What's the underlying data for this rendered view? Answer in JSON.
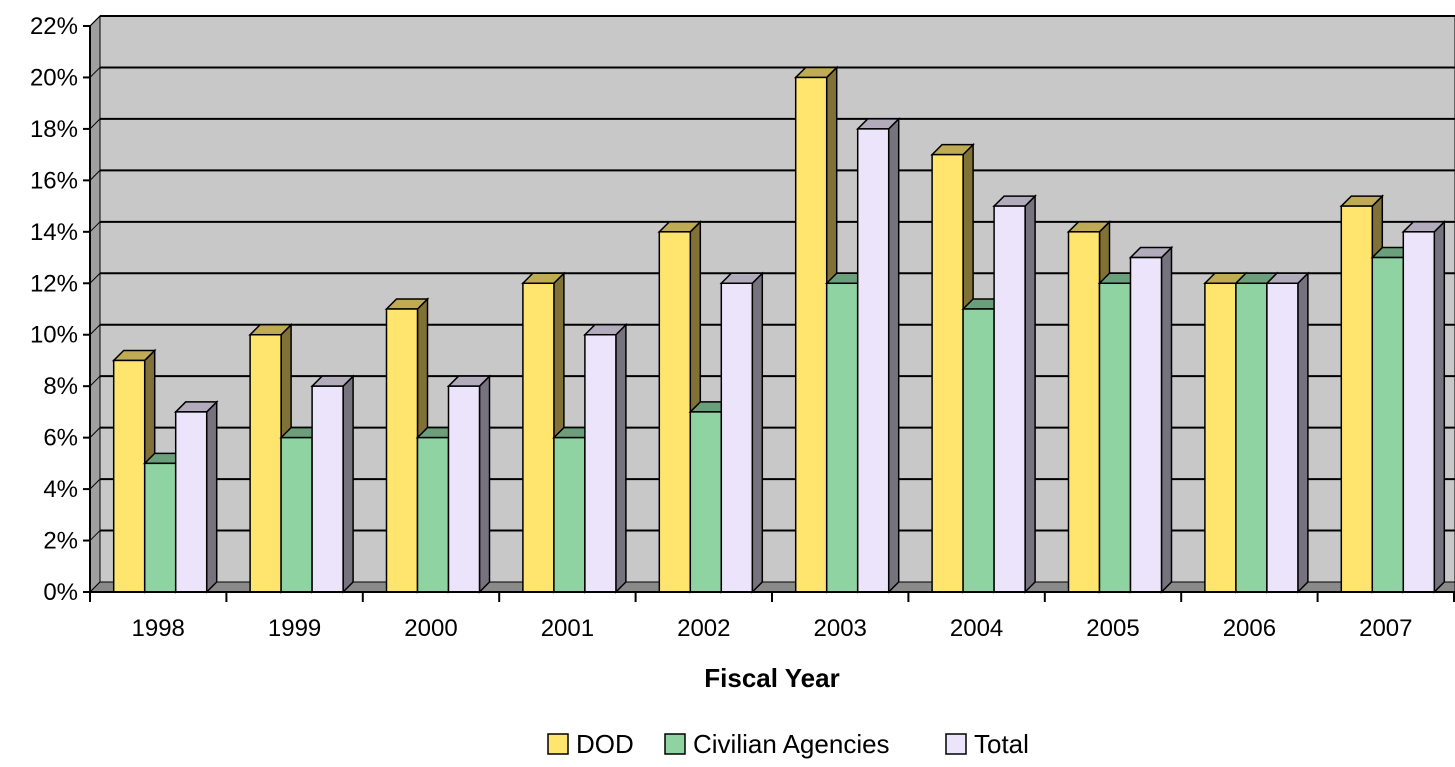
{
  "chart_data": {
    "type": "bar",
    "title": "",
    "xlabel": "Fiscal Year",
    "ylabel": "",
    "categories": [
      "1998",
      "1999",
      "2000",
      "2001",
      "2002",
      "2003",
      "2004",
      "2005",
      "2006",
      "2007"
    ],
    "series": [
      {
        "name": "DOD",
        "values": [
          9,
          10,
          11,
          12,
          14,
          20,
          17,
          14,
          12,
          15
        ]
      },
      {
        "name": "Civilian Agencies",
        "values": [
          5,
          6,
          6,
          6,
          7,
          12,
          11,
          12,
          12,
          13
        ]
      },
      {
        "name": "Total",
        "values": [
          7,
          8,
          8,
          10,
          12,
          18,
          15,
          13,
          12,
          14
        ]
      }
    ],
    "ylim": [
      0,
      22
    ],
    "yticks": [
      0,
      2,
      4,
      6,
      8,
      10,
      12,
      14,
      16,
      18,
      20,
      22
    ],
    "ytick_labels": [
      "0%",
      "2%",
      "4%",
      "6%",
      "8%",
      "10%",
      "12%",
      "14%",
      "16%",
      "18%",
      "20%",
      "22%"
    ],
    "grid": true,
    "legend_position": "bottom-center",
    "colors": {
      "DOD": "#ffe46e",
      "Civilian Agencies": "#8fd3a3",
      "Total": "#ece4fb",
      "plot_background": "#c8c8c8"
    }
  }
}
